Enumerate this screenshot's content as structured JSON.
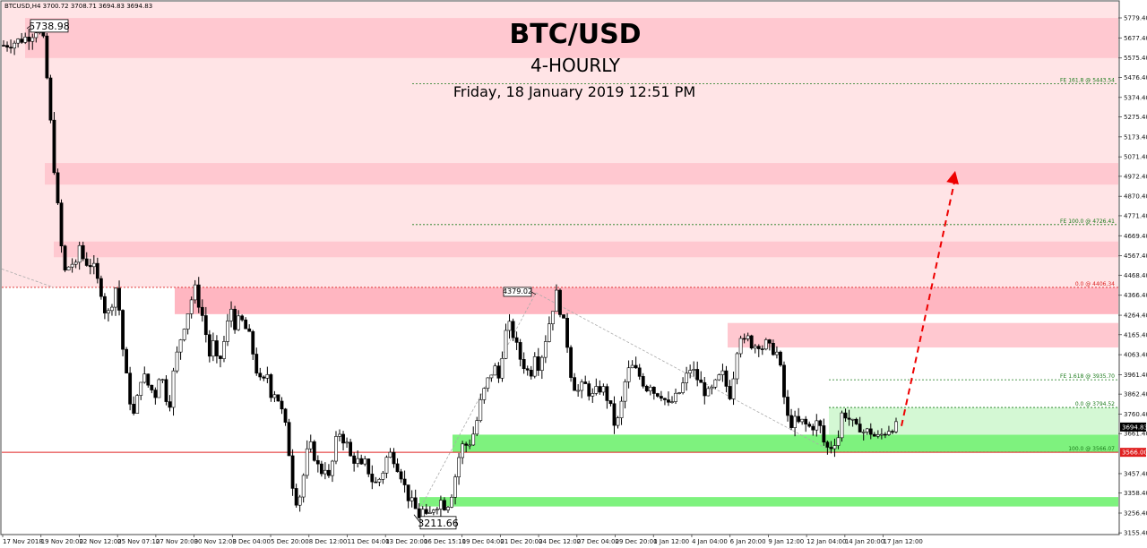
{
  "header": {
    "symbol_line": "BTCUSD,H4  3700.72 3708.71 3694.83 3694.83"
  },
  "chart_data": {
    "type": "candlestick",
    "title": "BTC/USD",
    "subtitle": "4-HOURLY",
    "date_line": "Friday, 18 January 2019 12:51 PM",
    "ylim": [
      3155.4,
      5850
    ],
    "y_ticks": [
      "5779.40",
      "5677.40",
      "5575.40",
      "5476.40",
      "5374.40",
      "5275.40",
      "5173.40",
      "5071.40",
      "4972.40",
      "4870.40",
      "4771.40",
      "4669.40",
      "4567.40",
      "4468.40",
      "4366.40",
      "4264.40",
      "4165.40",
      "4063.40",
      "3961.40",
      "3862.40",
      "3760.40",
      "3661.40",
      "3457.40",
      "3358.40",
      "3256.40",
      "3155.40"
    ],
    "x_ticks": [
      "17 Nov 2018",
      "19 Nov 20:00",
      "22 Nov 12:00",
      "25 Nov 07:10",
      "27 Nov 20:00",
      "30 Nov 12:00",
      "3 Dec 04:00",
      "5 Dec 20:00",
      "8 Dec 12:00",
      "11 Dec 04:00",
      "13 Dec 20:00",
      "16 Dec 15:10",
      "19 Dec 04:00",
      "21 Dec 20:00",
      "24 Dec 12:00",
      "27 Dec 04:00",
      "29 Dec 20:00",
      "1 Jan 12:00",
      "4 Jan 04:00",
      "6 Jan 20:00",
      "9 Jan 12:00",
      "12 Jan 04:00",
      "14 Jan 20:00",
      "17 Jan 12:00"
    ],
    "price_path": [
      [
        0,
        5640
      ],
      [
        3,
        5660
      ],
      [
        6,
        5690
      ],
      [
        8,
        5738.98
      ],
      [
        9,
        5650
      ],
      [
        10,
        5400
      ],
      [
        11,
        5100
      ],
      [
        12,
        4850
      ],
      [
        13,
        4600
      ],
      [
        14,
        4450
      ],
      [
        15,
        4560
      ],
      [
        16,
        4480
      ],
      [
        17,
        4620
      ],
      [
        18,
        4540
      ],
      [
        20,
        4520
      ],
      [
        21,
        4440
      ],
      [
        22,
        4380
      ],
      [
        23,
        4250
      ],
      [
        24,
        4300
      ],
      [
        25,
        4420
      ],
      [
        26,
        4280
      ],
      [
        27,
        4020
      ],
      [
        28,
        3880
      ],
      [
        29,
        3740
      ],
      [
        30,
        3840
      ],
      [
        31,
        3980
      ],
      [
        32,
        3920
      ],
      [
        34,
        3860
      ],
      [
        35,
        3980
      ],
      [
        36,
        3900
      ],
      [
        37,
        3780
      ],
      [
        38,
        3960
      ],
      [
        39,
        4080
      ],
      [
        40,
        4180
      ],
      [
        41,
        4260
      ],
      [
        42,
        4340
      ],
      [
        43,
        4400
      ],
      [
        44,
        4300
      ],
      [
        45,
        4230
      ],
      [
        46,
        4050
      ],
      [
        47,
        4120
      ],
      [
        48,
        4000
      ],
      [
        49,
        4080
      ],
      [
        50,
        4200
      ],
      [
        51,
        4300
      ],
      [
        52,
        4200
      ],
      [
        53,
        4250
      ],
      [
        55,
        4160
      ],
      [
        56,
        4060
      ],
      [
        57,
        3950
      ],
      [
        58,
        3900
      ],
      [
        59,
        3980
      ],
      [
        60,
        3860
      ],
      [
        61,
        3880
      ],
      [
        62,
        3800
      ],
      [
        63,
        3720
      ],
      [
        64,
        3560
      ],
      [
        65,
        3360
      ],
      [
        66,
        3300
      ],
      [
        67,
        3420
      ],
      [
        68,
        3560
      ],
      [
        69,
        3600
      ],
      [
        70,
        3520
      ],
      [
        71,
        3460
      ],
      [
        72,
        3500
      ],
      [
        73,
        3420
      ],
      [
        74,
        3560
      ],
      [
        75,
        3680
      ],
      [
        76,
        3640
      ],
      [
        77,
        3600
      ],
      [
        78,
        3520
      ],
      [
        79,
        3540
      ],
      [
        80,
        3480
      ],
      [
        81,
        3510
      ],
      [
        82,
        3460
      ],
      [
        83,
        3400
      ],
      [
        84,
        3420
      ],
      [
        85,
        3470
      ],
      [
        86,
        3550
      ],
      [
        87,
        3560
      ],
      [
        88,
        3510
      ],
      [
        89,
        3460
      ],
      [
        90,
        3380
      ],
      [
        91,
        3320
      ],
      [
        92,
        3290
      ],
      [
        93,
        3240
      ],
      [
        94,
        3270
      ],
      [
        95,
        3211.66
      ],
      [
        96,
        3280
      ],
      [
        97,
        3300
      ],
      [
        98,
        3320
      ],
      [
        99,
        3290
      ],
      [
        100,
        3320
      ],
      [
        101,
        3420
      ],
      [
        102,
        3540
      ],
      [
        103,
        3610
      ],
      [
        104,
        3600
      ],
      [
        105,
        3640
      ],
      [
        106,
        3720
      ],
      [
        107,
        3830
      ],
      [
        108,
        3900
      ],
      [
        109,
        3960
      ],
      [
        110,
        4000
      ],
      [
        111,
        3940
      ],
      [
        112,
        4120
      ],
      [
        113,
        4220
      ],
      [
        114,
        4180
      ],
      [
        115,
        4100
      ],
      [
        116,
        4030
      ],
      [
        117,
        4000
      ],
      [
        118,
        3950
      ],
      [
        119,
        4080
      ],
      [
        120,
        4000
      ],
      [
        121,
        4100
      ],
      [
        122,
        4200
      ],
      [
        123,
        4300
      ],
      [
        124,
        4379.02
      ],
      [
        125,
        4260
      ],
      [
        126,
        4180
      ],
      [
        127,
        3980
      ],
      [
        128,
        3900
      ],
      [
        129,
        3870
      ],
      [
        130,
        3920
      ],
      [
        131,
        3880
      ],
      [
        132,
        3850
      ],
      [
        133,
        3880
      ],
      [
        134,
        3900
      ],
      [
        135,
        3860
      ],
      [
        136,
        3790
      ],
      [
        137,
        3700
      ],
      [
        138,
        3740
      ],
      [
        139,
        3900
      ],
      [
        140,
        3980
      ],
      [
        141,
        4000
      ],
      [
        142,
        3970
      ],
      [
        143,
        3940
      ],
      [
        144,
        3890
      ],
      [
        145,
        3920
      ],
      [
        146,
        3860
      ],
      [
        147,
        3880
      ],
      [
        148,
        3840
      ],
      [
        149,
        3800
      ],
      [
        150,
        3830
      ],
      [
        151,
        3850
      ],
      [
        152,
        3900
      ],
      [
        153,
        3950
      ],
      [
        154,
        4000
      ],
      [
        155,
        3960
      ],
      [
        156,
        3920
      ],
      [
        157,
        3880
      ],
      [
        158,
        3860
      ],
      [
        159,
        3890
      ],
      [
        160,
        3930
      ],
      [
        161,
        3970
      ],
      [
        162,
        3900
      ],
      [
        163,
        3850
      ],
      [
        164,
        4050
      ],
      [
        165,
        4180
      ],
      [
        166,
        4120
      ],
      [
        167,
        4150
      ],
      [
        168,
        4100
      ],
      [
        169,
        4130
      ],
      [
        170,
        4100
      ],
      [
        171,
        4120
      ],
      [
        172,
        4080
      ],
      [
        173,
        4100
      ],
      [
        174,
        4000
      ],
      [
        175,
        3830
      ],
      [
        176,
        3700
      ],
      [
        177,
        3730
      ],
      [
        178,
        3710
      ],
      [
        179,
        3720
      ],
      [
        180,
        3700
      ],
      [
        181,
        3690
      ],
      [
        182,
        3720
      ],
      [
        183,
        3690
      ],
      [
        184,
        3600
      ],
      [
        185,
        3580
      ],
      [
        186,
        3620
      ],
      [
        187,
        3640
      ],
      [
        188,
        3780
      ],
      [
        189,
        3750
      ],
      [
        190,
        3720
      ],
      [
        191,
        3680
      ],
      [
        192,
        3700
      ],
      [
        193,
        3660
      ],
      [
        194,
        3680
      ],
      [
        195,
        3650
      ],
      [
        196,
        3640
      ],
      [
        197,
        3660
      ],
      [
        198,
        3680
      ],
      [
        199,
        3700
      ],
      [
        200,
        3694.83
      ]
    ],
    "zones": [
      {
        "kind": "resistance-band",
        "from": 4270,
        "to": 4406
      },
      {
        "kind": "resistance",
        "from": 5575,
        "to": 5779
      },
      {
        "kind": "resistance",
        "from": 4930,
        "to": 5040
      },
      {
        "kind": "resistance",
        "from": 4560,
        "to": 4640
      },
      {
        "kind": "resistance",
        "from": 4100,
        "to": 4225
      },
      {
        "kind": "support",
        "from": 3566,
        "to": 3656
      },
      {
        "kind": "support",
        "from": 3290,
        "to": 3338
      },
      {
        "kind": "target-area",
        "from": 3656,
        "to": 3794
      }
    ],
    "fib_levels": [
      {
        "label": "FE 161.8 @ 5443.54",
        "value": 5443.54
      },
      {
        "label": "FE 100.0 @ 4726.41",
        "value": 4726.41
      },
      {
        "label": "0.0 @ 4406.34",
        "value": 4406.34
      },
      {
        "label": "FE 1.618 @ 3935.70",
        "value": 3935.7
      },
      {
        "label": "0.0 @ 3794.52",
        "value": 3794.52
      },
      {
        "label": "100.0 @ 3566.07",
        "value": 3566.07
      }
    ],
    "current_price": "3694.83",
    "current_price_value": 3694.83,
    "support_line": "3566.00",
    "support_line_value": 3566.0,
    "callouts": [
      {
        "text": "5738.98",
        "value": 5738.98
      },
      {
        "text": "4379.02",
        "value": 4379.02
      },
      {
        "text": "3211.66",
        "value": 3211.66
      }
    ],
    "projection": {
      "from": 3700,
      "to": 5000
    }
  }
}
